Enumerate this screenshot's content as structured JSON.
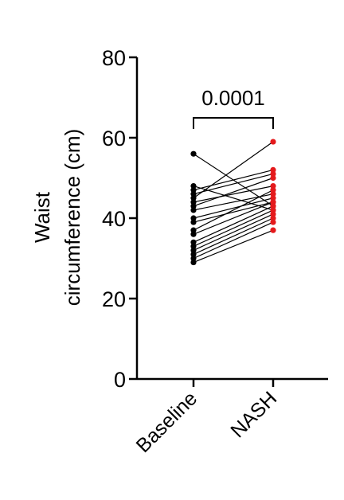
{
  "chart_data": {
    "type": "scatter",
    "subtype": "paired-dot-line",
    "ylabel_line1": "Waist",
    "ylabel_line2": "circumference (cm)",
    "categories": [
      "Baseline",
      "NASH"
    ],
    "ylim": [
      0,
      80
    ],
    "yticks": [
      "0",
      "20",
      "40",
      "60",
      "80"
    ],
    "significance": {
      "label": "0.0001",
      "between": [
        "Baseline",
        "NASH"
      ]
    },
    "colors": {
      "Baseline": "#000000",
      "NASH": "#e41a1c",
      "line": "#000000"
    },
    "pairs": [
      {
        "baseline": 56,
        "nash": 43
      },
      {
        "baseline": 48,
        "nash": 42
      },
      {
        "baseline": 47,
        "nash": 52
      },
      {
        "baseline": 46,
        "nash": 51
      },
      {
        "baseline": 45,
        "nash": 59
      },
      {
        "baseline": 44,
        "nash": 48
      },
      {
        "baseline": 43,
        "nash": 50
      },
      {
        "baseline": 42,
        "nash": 46
      },
      {
        "baseline": 40,
        "nash": 45
      },
      {
        "baseline": 39,
        "nash": 44
      },
      {
        "baseline": 37,
        "nash": 47
      },
      {
        "baseline": 36,
        "nash": 44
      },
      {
        "baseline": 34,
        "nash": 43
      },
      {
        "baseline": 33,
        "nash": 42
      },
      {
        "baseline": 32,
        "nash": 41
      },
      {
        "baseline": 31,
        "nash": 40
      },
      {
        "baseline": 30,
        "nash": 39
      },
      {
        "baseline": 29,
        "nash": 37
      }
    ]
  }
}
